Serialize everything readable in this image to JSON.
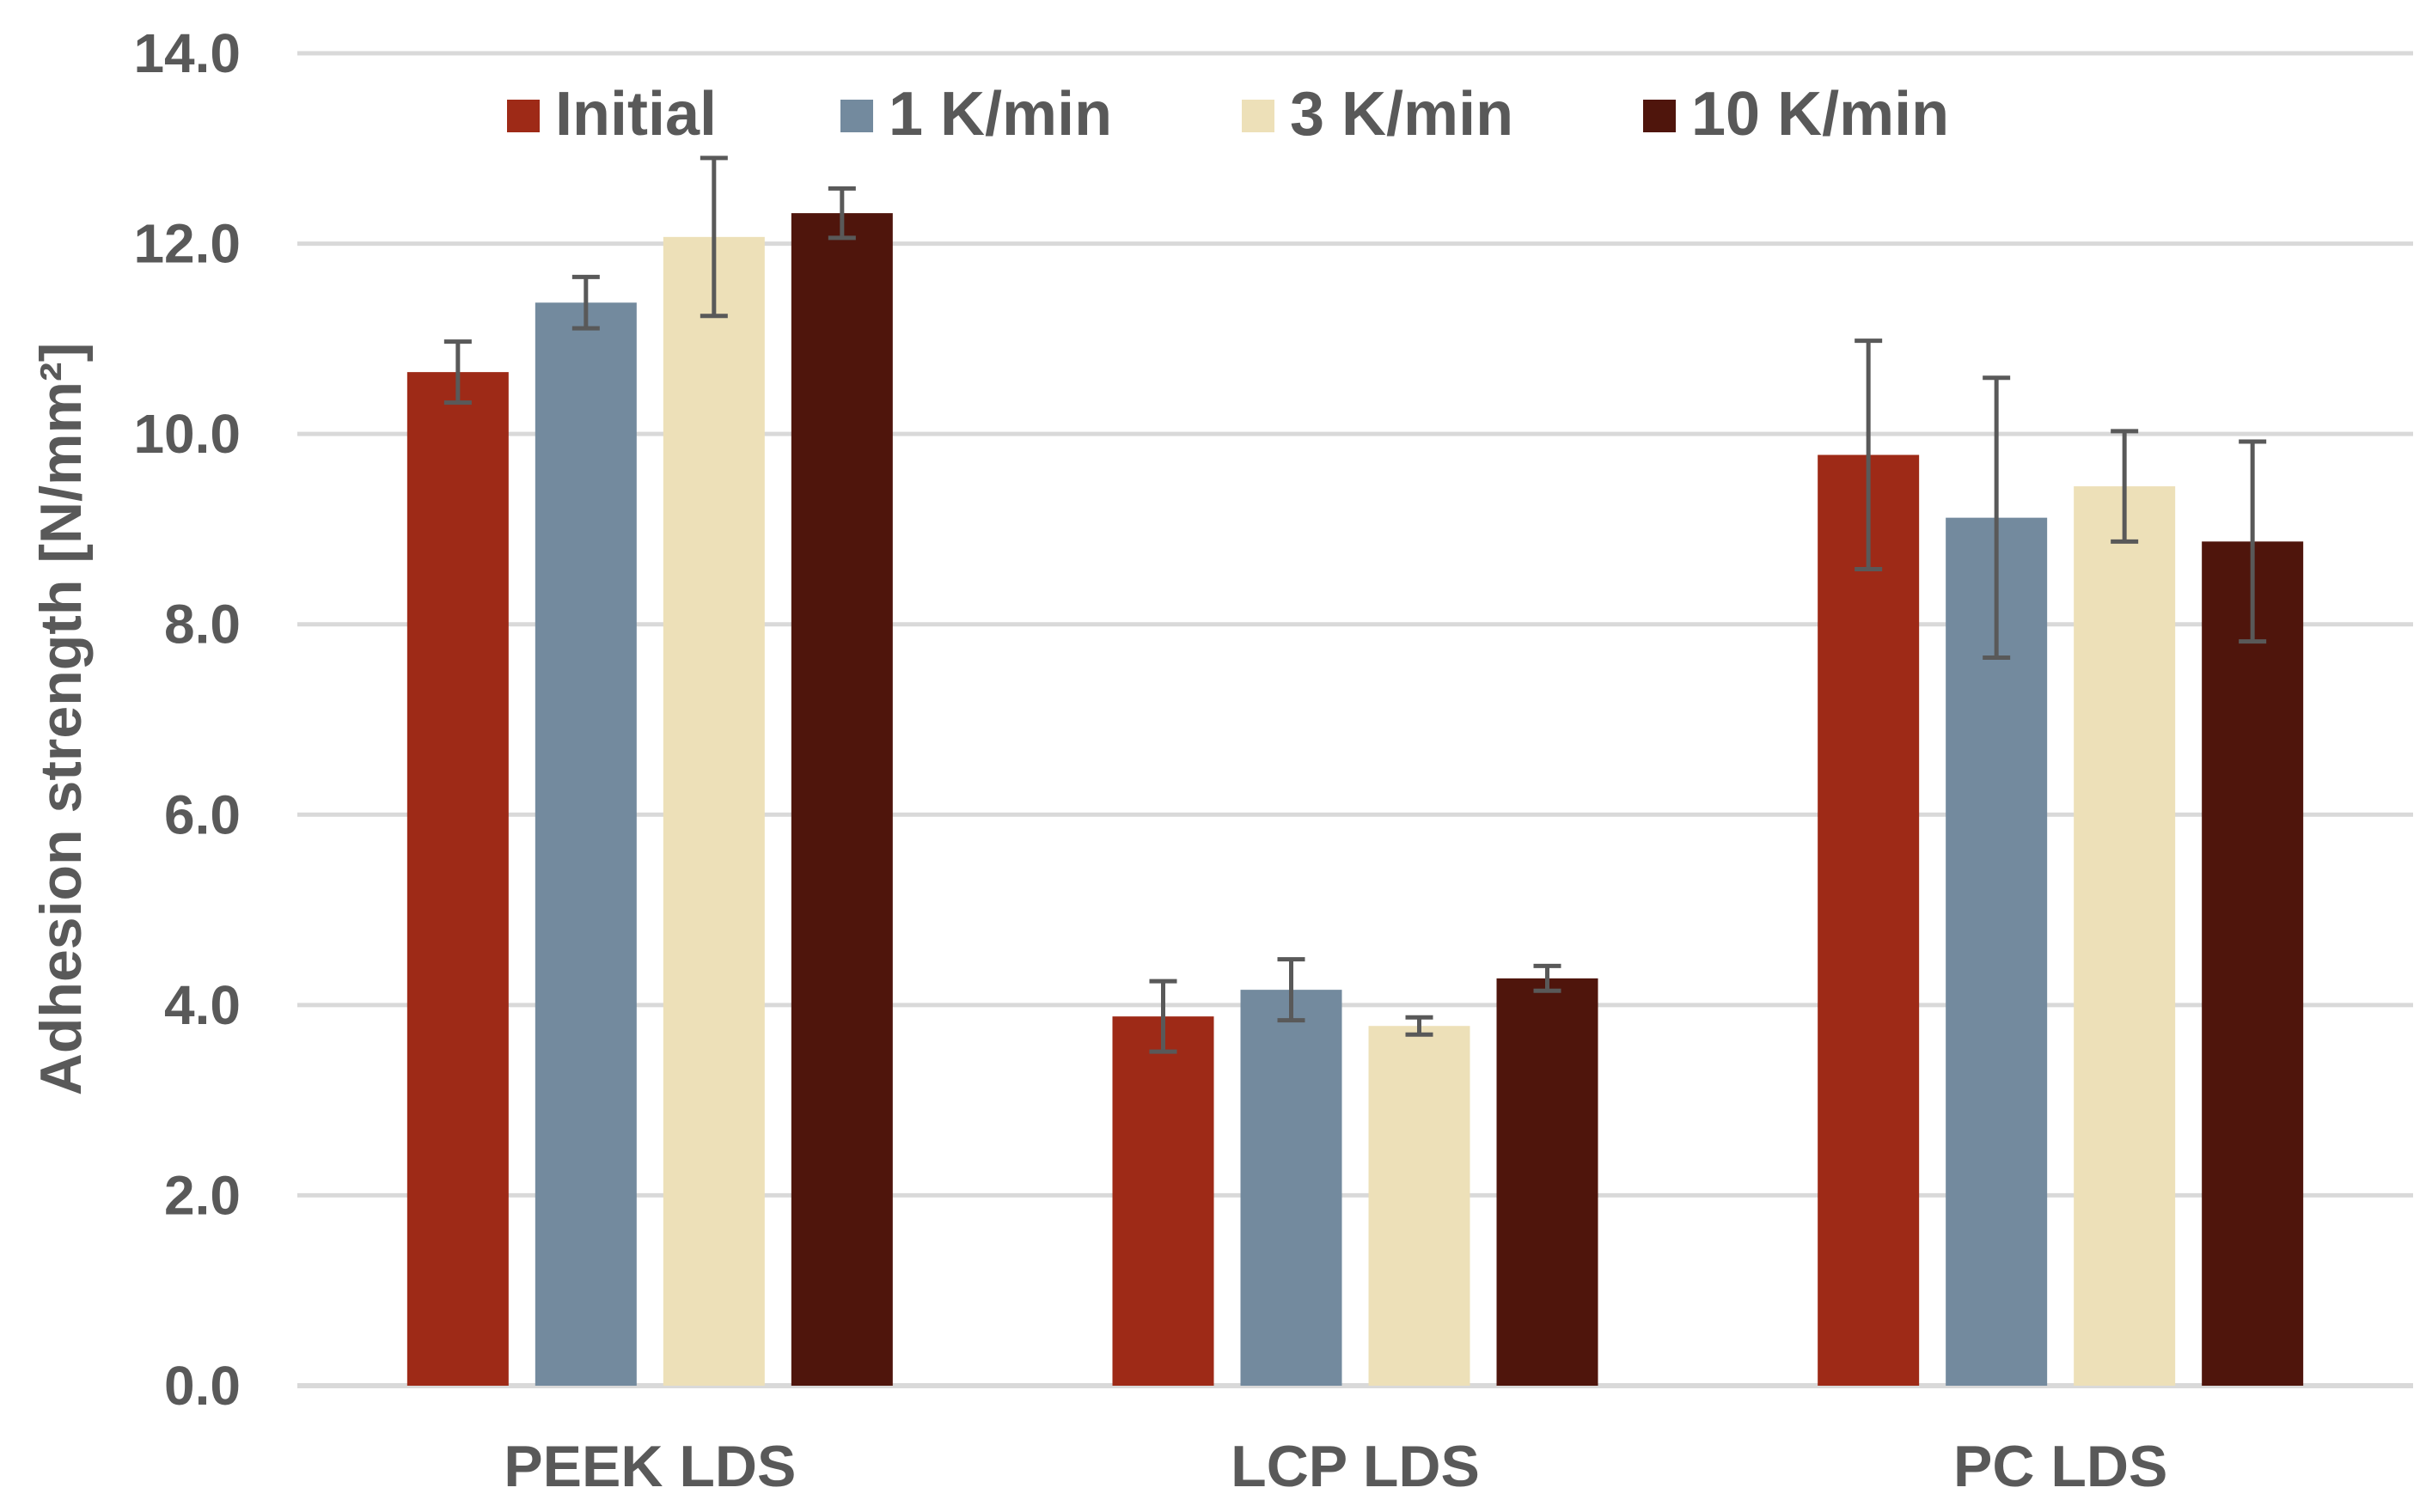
{
  "chart_data": {
    "type": "bar",
    "title": "",
    "xlabel": "",
    "ylabel": "Adhesion strength [N/mm²]",
    "ylim": [
      0,
      14
    ],
    "yticks": [
      "0.0",
      "2.0",
      "4.0",
      "6.0",
      "8.0",
      "10.0",
      "12.0",
      "14.0"
    ],
    "grid": true,
    "legend_position": "top",
    "categories": [
      "PEEK LDS",
      "LCP LDS",
      "PC LDS"
    ],
    "series": [
      {
        "name": "Initial",
        "color": "#9e2a17",
        "values": [
          10.65,
          3.88,
          9.78
        ],
        "errors": [
          0.32,
          0.37,
          1.2
        ]
      },
      {
        "name": "1 K/min",
        "color": "#738a9e",
        "values": [
          11.38,
          4.16,
          9.12
        ],
        "errors": [
          0.27,
          0.32,
          1.47
        ]
      },
      {
        "name": "3 K/min",
        "color": "#ede0b8",
        "values": [
          12.07,
          3.78,
          9.45
        ],
        "errors": [
          0.83,
          0.09,
          0.58
        ]
      },
      {
        "name": "10 K/min",
        "color": "#4f150c",
        "values": [
          12.32,
          4.28,
          8.87
        ],
        "errors": [
          0.26,
          0.13,
          1.05
        ]
      }
    ]
  }
}
